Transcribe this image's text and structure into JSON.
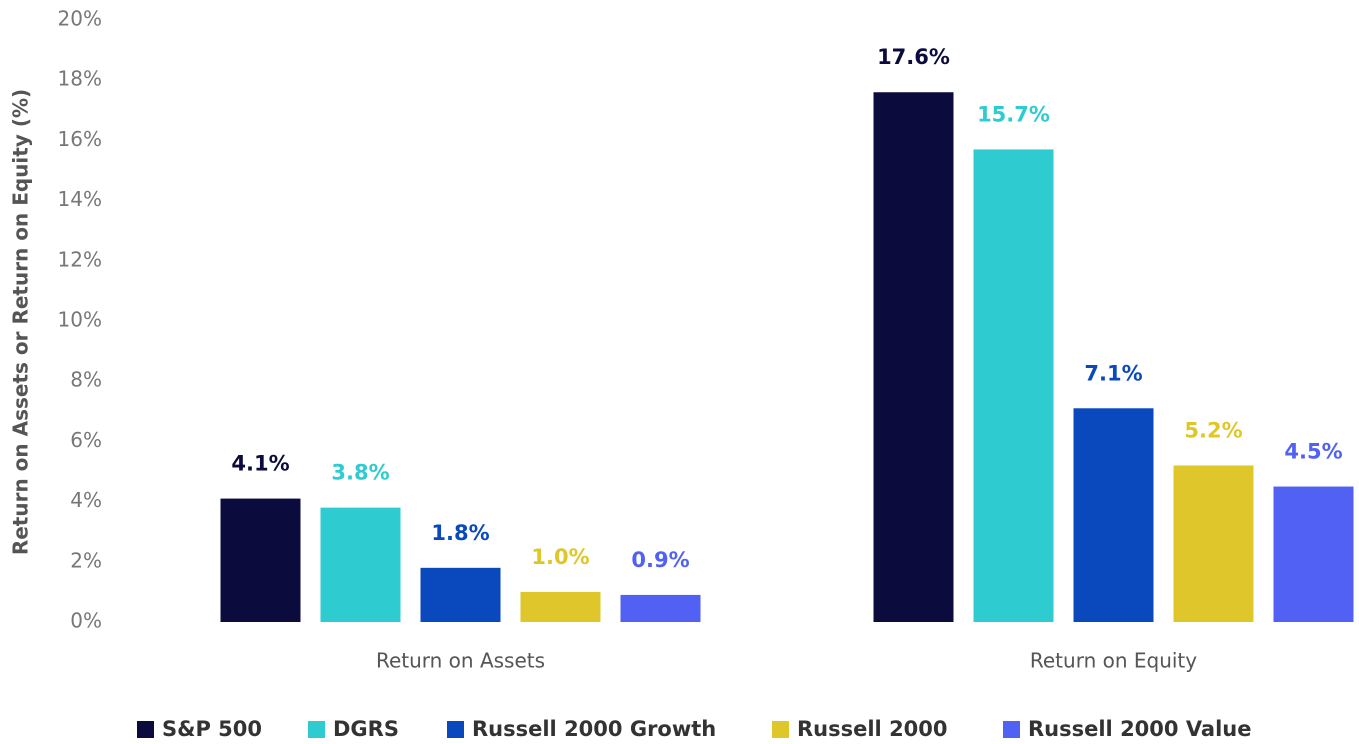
{
  "chart_data": {
    "type": "bar",
    "ylabel": "Return on Assets or Return on Equity (%)",
    "categories": [
      "Return on Assets",
      "Return on Equity"
    ],
    "series": [
      {
        "name": "S&P 500",
        "color": "#0b0b3d",
        "values": [
          4.1,
          17.6
        ],
        "value_labels": [
          "4.1%",
          "17.6%"
        ]
      },
      {
        "name": "DGRS",
        "color": "#2ecbd1",
        "values": [
          3.8,
          15.7
        ],
        "value_labels": [
          "3.8%",
          "15.7%"
        ]
      },
      {
        "name": "Russell 2000 Growth",
        "color": "#0a48be",
        "values": [
          1.8,
          7.1
        ],
        "value_labels": [
          "1.8%",
          "7.1%"
        ]
      },
      {
        "name": "Russell 2000",
        "color": "#dfc72b",
        "values": [
          1.0,
          5.2
        ],
        "value_labels": [
          "1.0%",
          "5.2%"
        ]
      },
      {
        "name": "Russell 2000 Value",
        "color": "#5161f4",
        "values": [
          0.9,
          4.5
        ],
        "value_labels": [
          "0.9%",
          "4.5%"
        ]
      }
    ],
    "ylim": [
      0,
      20
    ],
    "yticks": [
      {
        "value": 0,
        "label": "0%"
      },
      {
        "value": 2,
        "label": "2%"
      },
      {
        "value": 4,
        "label": "4%"
      },
      {
        "value": 6,
        "label": "6%"
      },
      {
        "value": 8,
        "label": "8%"
      },
      {
        "value": 10,
        "label": "10%"
      },
      {
        "value": 12,
        "label": "12%"
      },
      {
        "value": 14,
        "label": "14%"
      },
      {
        "value": 16,
        "label": "16%"
      },
      {
        "value": 18,
        "label": "18%"
      },
      {
        "value": 20,
        "label": "20%"
      }
    ],
    "grid": false,
    "legend": "bottom"
  }
}
